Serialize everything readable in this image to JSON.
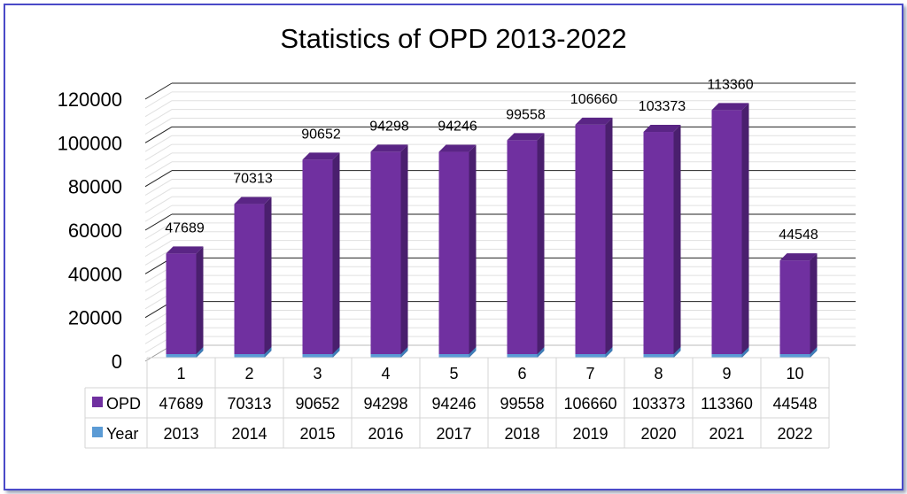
{
  "chart_data": {
    "type": "bar",
    "title": "Statistics of OPD 2013-2022",
    "categories": [
      "1",
      "2",
      "3",
      "4",
      "5",
      "6",
      "7",
      "8",
      "9",
      "10"
    ],
    "series": [
      {
        "name": "OPD",
        "values": [
          47689,
          70313,
          90652,
          94298,
          94246,
          99558,
          106660,
          103373,
          113360,
          44548
        ]
      },
      {
        "name": "Year",
        "values": [
          2013,
          2014,
          2015,
          2016,
          2017,
          2018,
          2019,
          2020,
          2021,
          2022
        ]
      }
    ],
    "y_ticks": [
      "0",
      "20000",
      "40000",
      "60000",
      "80000",
      "100000",
      "120000"
    ],
    "ylim": [
      0,
      120000
    ],
    "xlabel": "",
    "ylabel": "",
    "grid": true,
    "legend": "data-table",
    "colors": {
      "OPD": "#7030a0",
      "Year": "#5b9bd5"
    }
  }
}
